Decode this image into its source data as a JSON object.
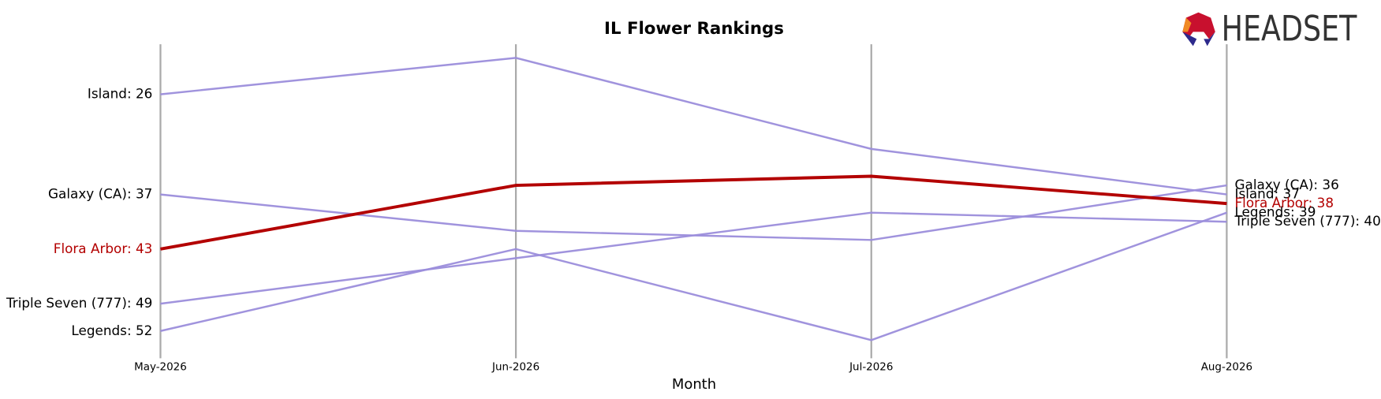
{
  "chart_data": {
    "type": "bump",
    "title": "IL Flower Rankings",
    "x_label": "Month",
    "logo": "HEADSET",
    "categories": [
      "May-2026",
      "Jun-2026",
      "Jul-2026",
      "Aug-2026"
    ],
    "ylim": [
      55,
      20.5
    ],
    "grid": true,
    "series": [
      {
        "name": "Island",
        "color": "#9b8ddb",
        "values": [
          26,
          22,
          32,
          37
        ],
        "start_label": "Island: 26",
        "end_label": "Island: 37"
      },
      {
        "name": "Galaxy (CA)",
        "color": "#9b8ddb",
        "values": [
          37,
          41,
          42,
          36
        ],
        "start_label": "Galaxy (CA): 37",
        "end_label": "Galaxy (CA): 36"
      },
      {
        "name": "Triple Seven (777)",
        "color": "#9b8ddb",
        "values": [
          49,
          44,
          39,
          40
        ],
        "start_label": "Triple Seven (777): 49",
        "end_label": "Triple Seven (777): 40"
      },
      {
        "name": "Legends",
        "color": "#9b8ddb",
        "values": [
          52,
          43,
          53,
          39
        ],
        "start_label": "Legends: 52",
        "end_label": "Legends: 39"
      },
      {
        "name": "Flora Arbor",
        "color": "#b30000",
        "values": [
          43,
          36,
          35,
          38
        ],
        "start_label": "Flora Arbor: 43",
        "end_label": "Flora Arbor: 38"
      }
    ]
  }
}
